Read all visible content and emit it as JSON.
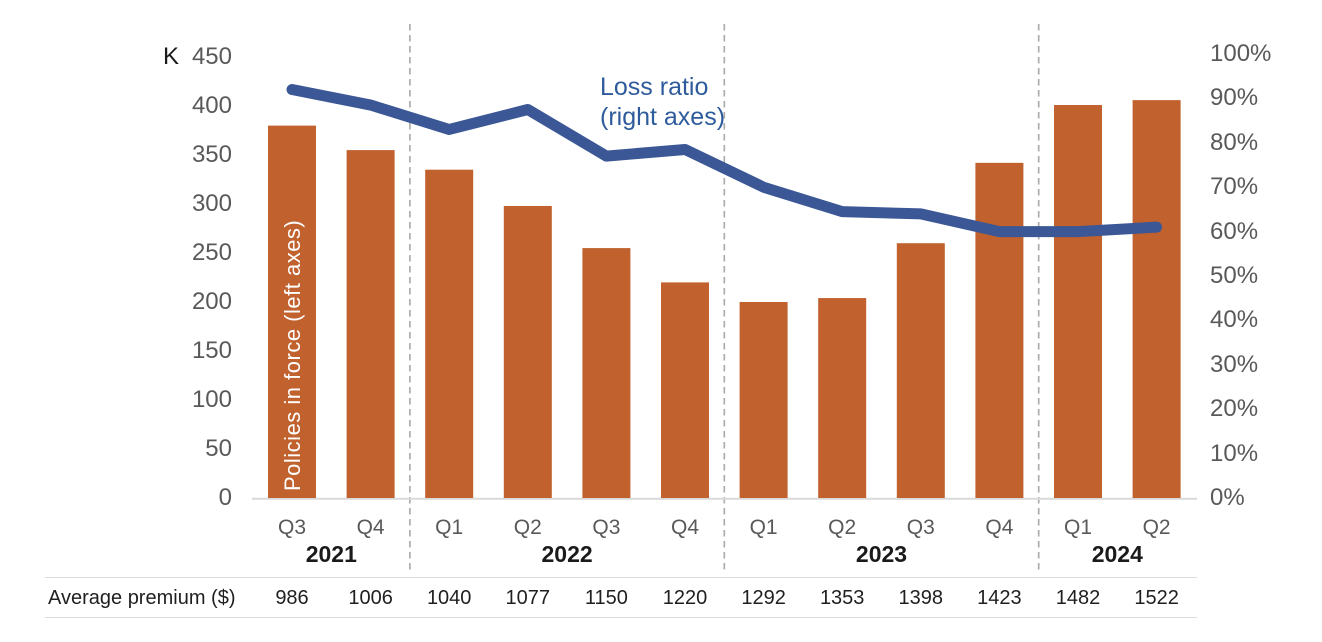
{
  "chart": {
    "left_axis_unit": "K",
    "left_ticks": [
      "0",
      "50",
      "100",
      "150",
      "200",
      "250",
      "300",
      "350",
      "400",
      "450"
    ],
    "right_ticks": [
      "0%",
      "10%",
      "20%",
      "30%",
      "40%",
      "50%",
      "60%",
      "70%",
      "80%",
      "90%",
      "100%"
    ],
    "bar_series_label": "Policies in force (left axes)",
    "line_series_label": "Loss ratio\n(right axes)"
  },
  "chart_data": {
    "type": "combo",
    "subtypes": [
      "bar",
      "line"
    ],
    "categories": [
      "Q3",
      "Q4",
      "Q1",
      "Q2",
      "Q3",
      "Q4",
      "Q1",
      "Q2",
      "Q3",
      "Q4",
      "Q1",
      "Q2"
    ],
    "year_groups": [
      {
        "label": "2021",
        "span": 2
      },
      {
        "label": "2022",
        "span": 4
      },
      {
        "label": "2023",
        "span": 4
      },
      {
        "label": "2024",
        "span": 2
      }
    ],
    "series": [
      {
        "name": "Policies in force",
        "type": "bar",
        "axis": "left",
        "unit": "K (thousands)",
        "color": "#c0612e",
        "values": [
          380,
          355,
          335,
          298,
          255,
          220,
          200,
          204,
          260,
          342,
          401,
          406
        ]
      },
      {
        "name": "Loss ratio",
        "type": "line",
        "axis": "right",
        "unit": "percent",
        "color": "#3b5795",
        "values": [
          92,
          88.5,
          83,
          87.5,
          77,
          78.5,
          70,
          64.5,
          64,
          60,
          60,
          61
        ]
      }
    ],
    "left_axis": {
      "label": "Policies in force (left axes)",
      "min": 0,
      "max": 450,
      "step": 50,
      "unit": "K"
    },
    "right_axis": {
      "label": "Loss ratio (right axes)",
      "min": 0,
      "max": 100,
      "step": 10,
      "format": "percent"
    },
    "grid": false,
    "legend_position": "in-plot annotations",
    "separators": "dashed vertical lines between years"
  },
  "table": {
    "row_label": "Average premium ($)",
    "values": [
      "986",
      "1006",
      "1040",
      "1077",
      "1150",
      "1220",
      "1292",
      "1353",
      "1398",
      "1423",
      "1482",
      "1522"
    ]
  },
  "colors": {
    "bar": "#c0612e",
    "line": "#3b5795",
    "annotation_text": "#2e5b9b",
    "axis_text": "#595959",
    "year_text": "#1a1a1a",
    "separator": "#adadad",
    "baseline": "#d9d9d9",
    "table_border": "#dcdcdc"
  }
}
